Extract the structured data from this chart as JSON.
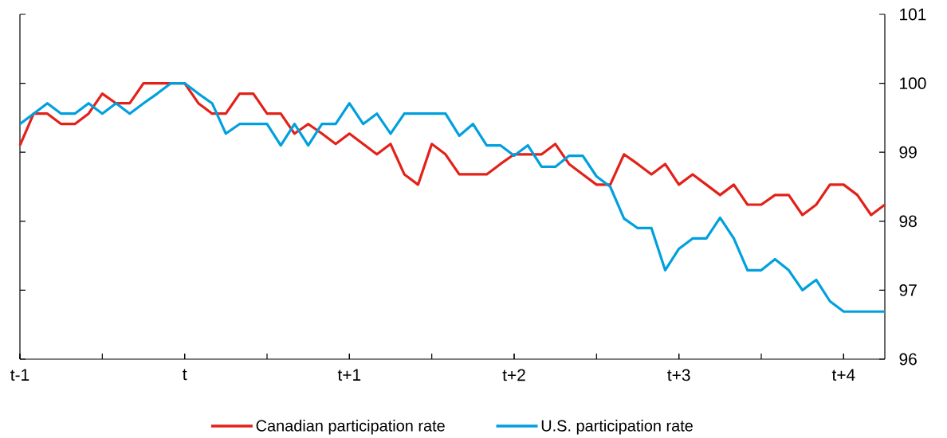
{
  "chart_data": {
    "type": "line",
    "categories": [
      "t-1",
      null,
      null,
      null,
      null,
      null,
      null,
      null,
      null,
      null,
      null,
      null,
      "t",
      null,
      null,
      null,
      null,
      null,
      null,
      null,
      null,
      null,
      null,
      null,
      "t+1",
      null,
      null,
      null,
      null,
      null,
      null,
      null,
      null,
      null,
      null,
      null,
      "t+2",
      null,
      null,
      null,
      null,
      null,
      null,
      null,
      null,
      null,
      null,
      null,
      "t+3",
      null,
      null,
      null,
      null,
      null,
      null,
      null,
      null,
      null,
      null,
      null,
      "t+4",
      null,
      null,
      null
    ],
    "ylim": [
      96,
      101
    ],
    "yticks": [
      96,
      97,
      98,
      99,
      100,
      101
    ],
    "legend": "bottom",
    "series": [
      {
        "name": "Canadian participation rate",
        "color": "#e32119",
        "values": [
          99.1,
          99.56,
          99.56,
          99.41,
          99.41,
          99.56,
          99.85,
          99.71,
          99.71,
          100,
          100,
          100,
          100,
          99.71,
          99.56,
          99.56,
          99.85,
          99.85,
          99.56,
          99.56,
          99.27,
          99.41,
          99.27,
          99.12,
          99.27,
          99.12,
          98.97,
          99.12,
          98.68,
          98.53,
          99.12,
          98.97,
          98.68,
          98.68,
          98.68,
          98.83,
          98.97,
          98.97,
          98.97,
          99.12,
          98.83,
          98.68,
          98.53,
          98.53,
          98.97,
          98.83,
          98.68,
          98.83,
          98.53,
          98.68,
          98.53,
          98.38,
          98.53,
          98.24,
          98.24,
          98.38,
          98.38,
          98.09,
          98.24,
          98.53,
          98.53,
          98.38,
          98.09,
          98.24
        ]
      },
      {
        "name": "U.S. participation rate",
        "color": "#00a0df",
        "values": [
          99.41,
          99.56,
          99.71,
          99.56,
          99.56,
          99.71,
          99.56,
          99.71,
          99.56,
          99.71,
          99.85,
          100,
          100,
          99.85,
          99.71,
          99.27,
          99.41,
          99.41,
          99.41,
          99.1,
          99.41,
          99.1,
          99.41,
          99.41,
          99.71,
          99.41,
          99.56,
          99.27,
          99.56,
          99.56,
          99.56,
          99.56,
          99.24,
          99.41,
          99.1,
          99.1,
          98.95,
          99.1,
          98.79,
          98.79,
          98.95,
          98.95,
          98.65,
          98.5,
          98.04,
          97.9,
          97.9,
          97.29,
          97.6,
          97.75,
          97.75,
          98.05,
          97.75,
          97.29,
          97.29,
          97.45,
          97.29,
          97.0,
          97.15,
          96.84,
          96.69,
          96.69,
          96.69,
          96.69
        ]
      }
    ]
  }
}
